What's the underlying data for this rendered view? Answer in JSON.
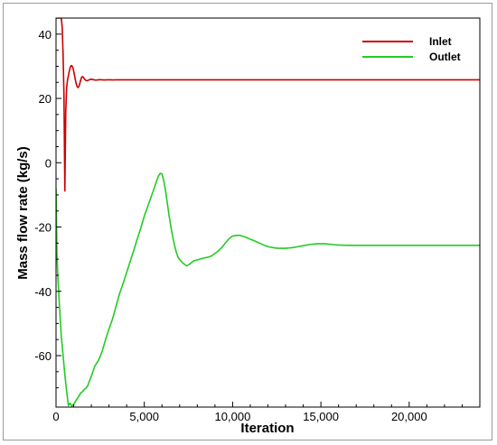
{
  "chart_data": {
    "type": "line",
    "title": "",
    "xlabel": "Iteration",
    "ylabel": "Mass flow rate (kg/s)",
    "xlim": [
      0,
      24000
    ],
    "ylim": [
      -76,
      45
    ],
    "x_ticks": [
      0,
      5000,
      10000,
      15000,
      20000
    ],
    "x_tick_labels": [
      "0",
      "5,000",
      "10,000",
      "15,000",
      "20,000"
    ],
    "y_ticks": [
      40,
      20,
      0,
      -20,
      -40,
      -60
    ],
    "y_tick_labels": [
      "40",
      "20",
      "0",
      "-20",
      "-40",
      "-60"
    ],
    "grid": false,
    "legend": "top-right",
    "series": [
      {
        "name": "Inlet",
        "color": "#cc0000",
        "x": [
          0,
          50,
          100,
          150,
          200,
          250,
          300,
          350,
          400,
          450,
          500,
          550,
          600,
          650,
          700,
          750,
          800,
          850,
          900,
          950,
          1000,
          1050,
          1100,
          1150,
          1200,
          1250,
          1300,
          1350,
          1400,
          1450,
          1500,
          1550,
          1600,
          1650,
          1700,
          1750,
          1800,
          1850,
          1900,
          1950,
          2000,
          2050,
          2100,
          2150,
          2200,
          2250,
          2300,
          2350,
          2400,
          2450,
          2500,
          2600,
          2700,
          2800,
          2900,
          3000,
          3100,
          3200,
          3300,
          3400,
          3500,
          5000,
          10000,
          15000,
          20000,
          24000
        ],
        "y": [
          45,
          45,
          45,
          45,
          45,
          45,
          45,
          42.07,
          33.58,
          20.89,
          -8.78,
          15.72,
          23.27,
          25.71,
          27.07,
          28.47,
          29.66,
          30.2,
          30.17,
          29.64,
          28.53,
          27.08,
          25.65,
          24.43,
          23.62,
          23.39,
          23.8,
          24.7,
          25.77,
          26.61,
          26.79,
          26.55,
          26.16,
          25.81,
          25.59,
          25.52,
          25.58,
          25.72,
          25.85,
          25.94,
          25.96,
          25.92,
          25.85,
          25.78,
          25.73,
          25.71,
          25.72,
          25.75,
          25.79,
          25.82,
          25.82,
          25.8,
          25.76,
          25.76,
          25.78,
          25.79,
          25.78,
          25.76,
          25.77,
          25.78,
          25.78,
          25.78,
          25.78,
          25.78,
          25.78,
          25.78
        ]
      },
      {
        "name": "Outlet",
        "color": "#22cc22",
        "x": [
          0,
          50,
          100,
          200,
          300,
          400,
          500,
          600,
          700,
          800,
          900,
          1000,
          1100,
          1200,
          1300,
          1400,
          1500,
          1600,
          1700,
          1800,
          1900,
          2000,
          2200,
          2400,
          2600,
          2800,
          3000,
          3200,
          3400,
          3600,
          3800,
          4000,
          4200,
          4400,
          4600,
          4800,
          5000,
          5200,
          5400,
          5600,
          5700,
          5800,
          5900,
          6000,
          6100,
          6200,
          6300,
          6400,
          6500,
          6600,
          6700,
          6800,
          6900,
          7000,
          7200,
          7400,
          7600,
          7800,
          8000,
          8200,
          8400,
          8600,
          8800,
          9000,
          9200,
          9400,
          9600,
          9800,
          10000,
          10200,
          10400,
          10600,
          10800,
          11000,
          11200,
          11400,
          11600,
          11800,
          12000,
          12200,
          12400,
          12600,
          12800,
          13000,
          13200,
          13400,
          13600,
          13800,
          14000,
          14200,
          14400,
          14600,
          14800,
          15000,
          15200,
          15400,
          15600,
          15800,
          16000,
          16500,
          17000,
          17500,
          18000,
          18500,
          19000,
          19500,
          20000,
          20500,
          21000,
          21500,
          22000,
          22500,
          23000,
          23500,
          24000
        ],
        "y": [
          -8,
          -28,
          -35,
          -45,
          -54,
          -60,
          -66,
          -71,
          -75.5,
          -74.8,
          -75.7,
          -75.1,
          -74.2,
          -73.4,
          -72.5,
          -71.6,
          -71.2,
          -70.5,
          -70.1,
          -69.3,
          -67.8,
          -66.4,
          -63.2,
          -61.5,
          -58.9,
          -55.1,
          -51.7,
          -48.6,
          -44.6,
          -40.7,
          -37.5,
          -34.1,
          -30.7,
          -27.3,
          -23.7,
          -20.3,
          -16.6,
          -13.5,
          -10.4,
          -7.3,
          -5.6,
          -4.1,
          -3.3,
          -3.5,
          -5.5,
          -8.6,
          -12.5,
          -16.3,
          -19.8,
          -22.8,
          -25.4,
          -27.6,
          -29.3,
          -30.1,
          -31.3,
          -32.1,
          -31.4,
          -30.5,
          -30.2,
          -29.9,
          -29.6,
          -29.4,
          -29.0,
          -28.2,
          -27.4,
          -26.3,
          -24.9,
          -23.6,
          -22.8,
          -22.6,
          -22.6,
          -22.9,
          -23.3,
          -23.8,
          -24.2,
          -24.7,
          -25.2,
          -25.7,
          -26.1,
          -26.3,
          -26.5,
          -26.6,
          -26.6,
          -26.6,
          -26.5,
          -26.4,
          -26.2,
          -26.0,
          -25.8,
          -25.6,
          -25.4,
          -25.3,
          -25.2,
          -25.2,
          -25.2,
          -25.3,
          -25.4,
          -25.5,
          -25.6,
          -25.7,
          -25.7,
          -25.7,
          -25.7,
          -25.7,
          -25.7,
          -25.7,
          -25.7,
          -25.7,
          -25.7,
          -25.7,
          -25.7,
          -25.7,
          -25.7,
          -25.7,
          -25.7
        ]
      }
    ]
  }
}
